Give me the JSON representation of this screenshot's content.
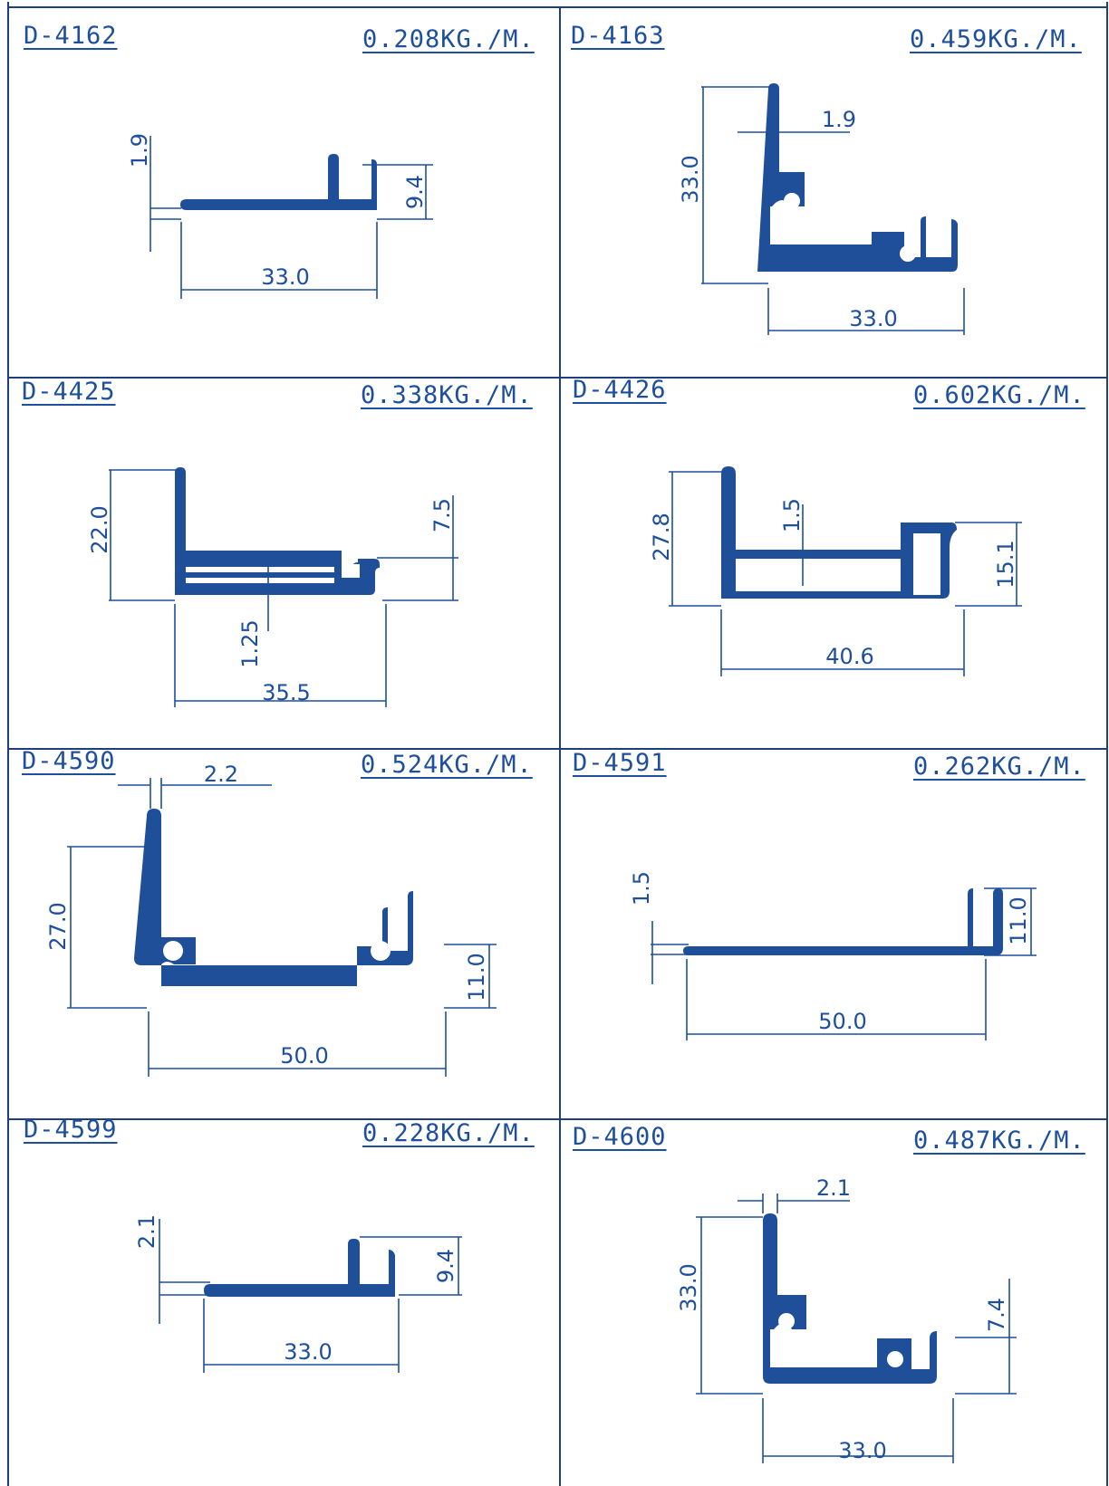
{
  "colors": {
    "ink": "#1d4f9c",
    "profile": "#1e4f98",
    "grid": "#1d3f7c",
    "background": "#ffffff"
  },
  "profiles": [
    {
      "code": "D-4162",
      "weight": "0.208KG./M.",
      "dims": {
        "thickness": "1.9",
        "height": "9.4",
        "width": "33.0"
      }
    },
    {
      "code": "D-4163",
      "weight": "0.459KG./M.",
      "dims": {
        "height": "33.0",
        "thickness": "1.9",
        "width": "33.0"
      }
    },
    {
      "code": "D-4425",
      "weight": "0.338KG./M.",
      "dims": {
        "height": "22.0",
        "lip": "7.5",
        "wall": "1.25",
        "width": "35.5"
      }
    },
    {
      "code": "D-4426",
      "weight": "0.602KG./M.",
      "dims": {
        "height": "27.8",
        "wall": "1.5",
        "lip": "15.1",
        "width": "40.6"
      }
    },
    {
      "code": "D-4590",
      "weight": "0.524KG./M.",
      "dims": {
        "thickness": "2.2",
        "height": "27.0",
        "lip": "11.0",
        "width": "50.0"
      }
    },
    {
      "code": "D-4591",
      "weight": "0.262KG./M.",
      "dims": {
        "thickness": "1.5",
        "lip": "11.0",
        "width": "50.0"
      }
    },
    {
      "code": "D-4599",
      "weight": "0.228KG./M.",
      "dims": {
        "thickness": "2.1",
        "height": "9.4",
        "width": "33.0"
      }
    },
    {
      "code": "D-4600",
      "weight": "0.487KG./M.",
      "dims": {
        "thickness": "2.1",
        "height": "33.0",
        "lip": "7.4",
        "width": "33.0"
      }
    }
  ]
}
